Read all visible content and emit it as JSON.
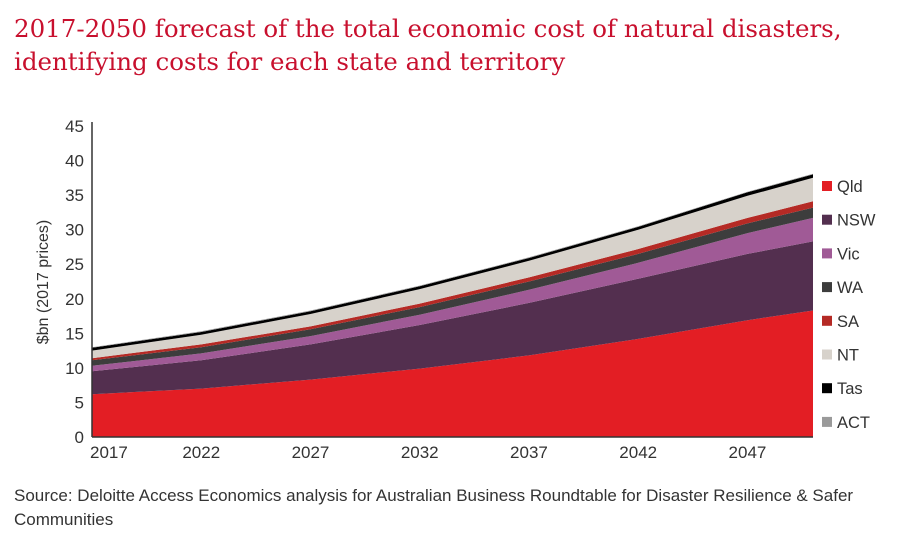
{
  "title_line1": "2017-2050 forecast of the total economic cost of natural disasters,",
  "title_line2": "identifying costs for each state and territory",
  "source": "Source: Deloitte Access Economics analysis for Australian Business Roundtable for Disaster Resilience & Safer Communities",
  "colors": {
    "Qld": "#e31e24",
    "NSW": "#532f4f",
    "Vic": "#a05a96",
    "WA": "#3d3d3d",
    "SA": "#b52a25",
    "NT": "#d7d2cb",
    "Tas": "#000000",
    "ACT": "#9a9a9a"
  },
  "chart_data": {
    "type": "area",
    "stacked": true,
    "title": "2017-2050 forecast of the total economic cost of natural disasters, identifying costs for each state and territory",
    "xlabel": "",
    "ylabel": "$bn (2017 prices)",
    "xlim": [
      2017,
      2050
    ],
    "ylim": [
      0,
      45
    ],
    "yticks": [
      0,
      5,
      10,
      15,
      20,
      25,
      30,
      35,
      40,
      45
    ],
    "xticks": [
      2017,
      2022,
      2027,
      2032,
      2037,
      2042,
      2047
    ],
    "grid": false,
    "legend_position": "right",
    "x": [
      2017,
      2022,
      2027,
      2032,
      2037,
      2042,
      2047,
      2050
    ],
    "series": [
      {
        "name": "Qld",
        "values": [
          6.2,
          7.0,
          8.3,
          9.9,
          11.8,
          14.2,
          16.9,
          18.3
        ]
      },
      {
        "name": "NSW",
        "values": [
          3.3,
          4.1,
          5.1,
          6.3,
          7.6,
          8.7,
          9.6,
          10.0
        ]
      },
      {
        "name": "Vic",
        "values": [
          0.8,
          1.0,
          1.2,
          1.5,
          1.9,
          2.3,
          3.0,
          3.4
        ]
      },
      {
        "name": "WA",
        "values": [
          0.8,
          0.9,
          1.0,
          1.1,
          1.2,
          1.3,
          1.4,
          1.5
        ]
      },
      {
        "name": "SA",
        "values": [
          0.3,
          0.4,
          0.4,
          0.5,
          0.6,
          0.7,
          0.8,
          0.9
        ]
      },
      {
        "name": "NT",
        "values": [
          1.1,
          1.4,
          1.8,
          2.1,
          2.4,
          2.8,
          3.2,
          3.4
        ]
      },
      {
        "name": "Tas",
        "values": [
          0.4,
          0.4,
          0.4,
          0.4,
          0.4,
          0.4,
          0.5,
          0.5
        ]
      },
      {
        "name": "ACT",
        "values": [
          0.1,
          0.1,
          0.1,
          0.1,
          0.1,
          0.1,
          0.1,
          0.1
        ]
      }
    ]
  }
}
